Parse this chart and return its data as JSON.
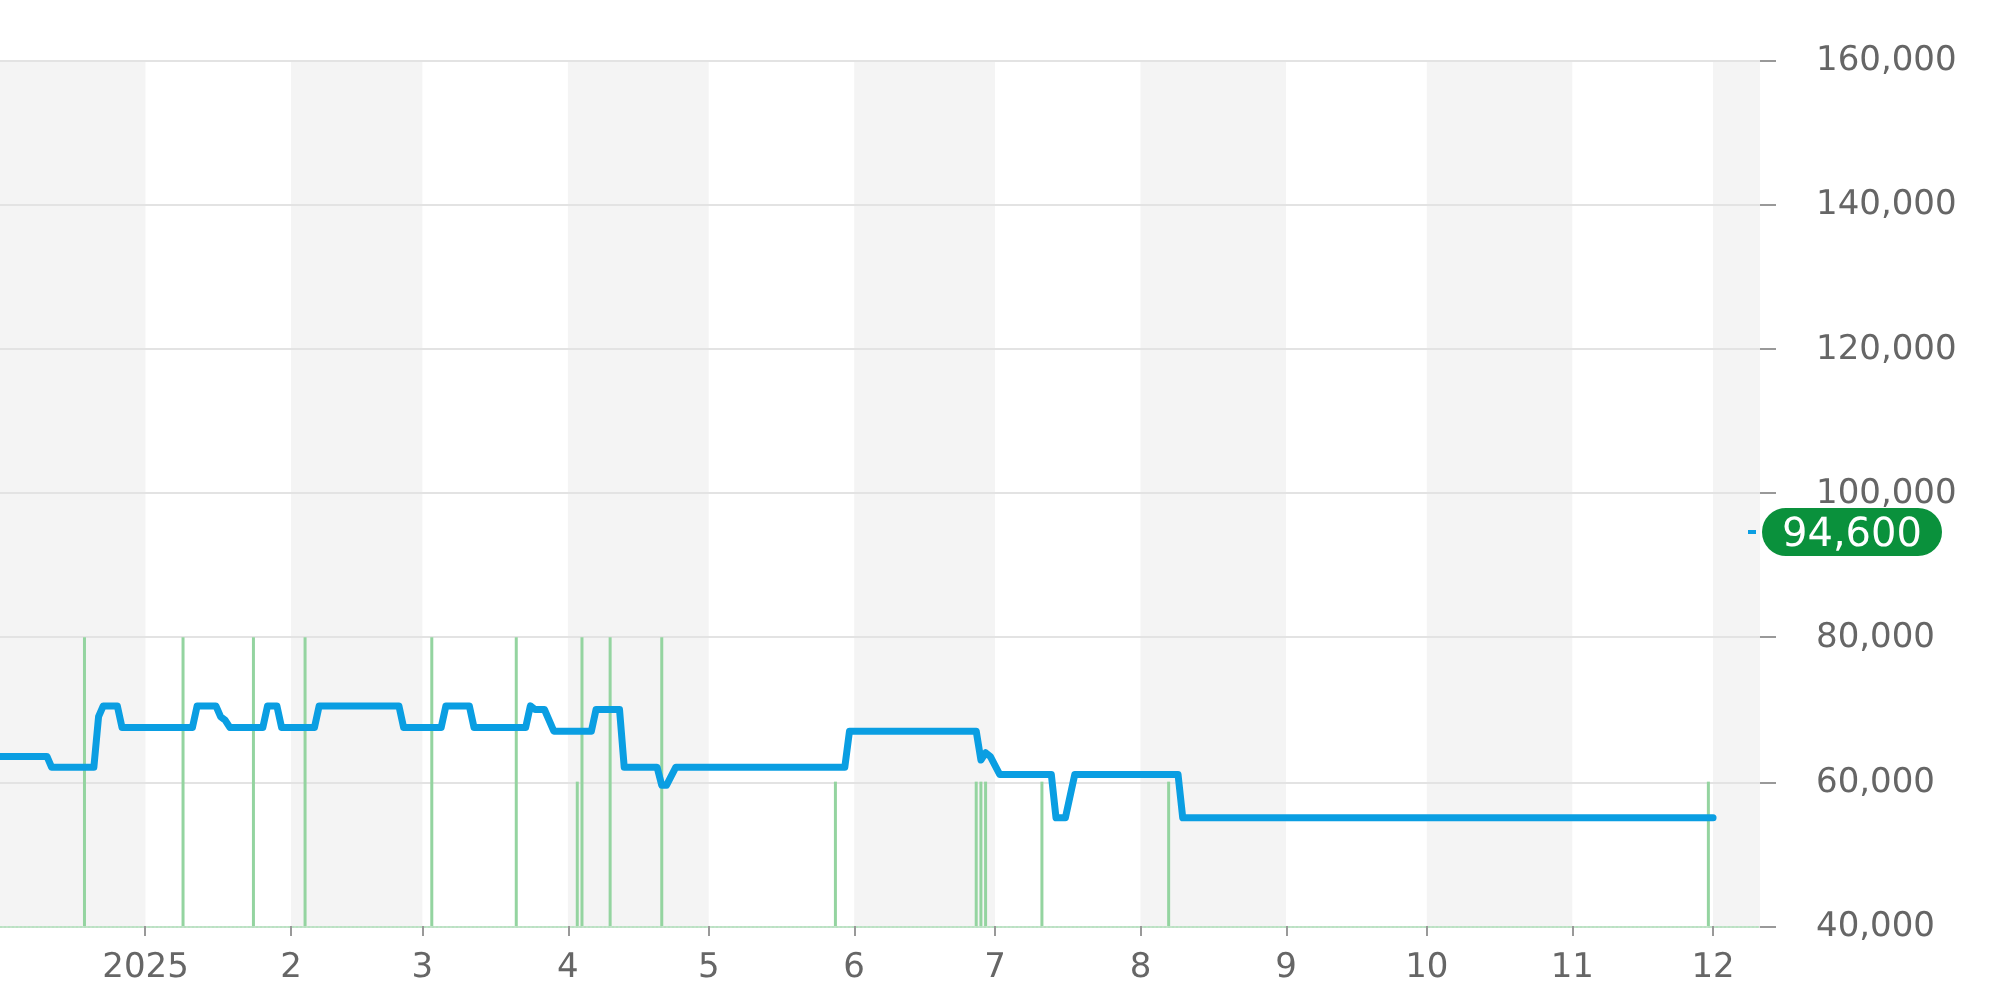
{
  "chart_data": {
    "type": "line",
    "xlim": [
      "2024-12-01",
      "2025-12-11"
    ],
    "xticks": [
      {
        "value": "2025-01-01",
        "label": "2025"
      },
      {
        "value": "2025-02-01",
        "label": "2"
      },
      {
        "value": "2025-03-01",
        "label": "3"
      },
      {
        "value": "2025-04-01",
        "label": "4"
      },
      {
        "value": "2025-05-01",
        "label": "5"
      },
      {
        "value": "2025-06-01",
        "label": "6"
      },
      {
        "value": "2025-07-01",
        "label": "7"
      },
      {
        "value": "2025-08-01",
        "label": "8"
      },
      {
        "value": "2025-09-01",
        "label": "9"
      },
      {
        "value": "2025-10-01",
        "label": "10"
      },
      {
        "value": "2025-11-01",
        "label": "11"
      },
      {
        "value": "2025-12-01",
        "label": "12"
      }
    ],
    "ylim": [
      40000,
      160000
    ],
    "yticks": [
      {
        "value": 40000,
        "label": "40,000"
      },
      {
        "value": 60000,
        "label": "60,000"
      },
      {
        "value": 80000,
        "label": "80,000"
      },
      {
        "value": 100000,
        "label": "100,000"
      },
      {
        "value": 120000,
        "label": "120,000"
      },
      {
        "value": 140000,
        "label": "140,000"
      },
      {
        "value": 160000,
        "label": "160,000"
      }
    ],
    "grid": "y",
    "marker": "none",
    "series": [
      {
        "type": "bar",
        "color": "#94d4a0",
        "x": [
          "2024-12-19",
          "2025-01-09",
          "2025-01-24",
          "2025-02-04",
          "2025-03-03",
          "2025-03-21",
          "2025-04-03",
          "2025-04-04",
          "2025-04-10",
          "2025-04-21",
          "2025-05-28",
          "2025-06-27",
          "2025-06-28",
          "2025-06-29",
          "2025-07-11",
          "2025-08-07",
          "2025-11-30"
        ],
        "values": [
          80000,
          80000,
          80000,
          80000,
          80000,
          80000,
          60000,
          80000,
          80000,
          80000,
          60000,
          60000,
          60000,
          60000,
          60000,
          60000,
          60000
        ]
      },
      {
        "color": "#0a9ee2",
        "x": [
          "2024-12-01",
          "2024-12-11",
          "2024-12-12",
          "2024-12-21",
          "2024-12-22",
          "2024-12-23",
          "2024-12-26",
          "2024-12-27",
          "2025-01-11",
          "2025-01-12",
          "2025-01-16",
          "2025-01-17",
          "2025-01-18",
          "2025-01-19",
          "2025-01-26",
          "2025-01-27",
          "2025-01-29",
          "2025-01-30",
          "2025-02-06",
          "2025-02-07",
          "2025-02-24",
          "2025-02-25",
          "2025-03-05",
          "2025-03-06",
          "2025-03-11",
          "2025-03-12",
          "2025-03-23",
          "2025-03-24",
          "2025-03-25",
          "2025-03-27",
          "2025-03-29",
          "2025-04-06",
          "2025-04-07",
          "2025-04-12",
          "2025-04-13",
          "2025-04-20",
          "2025-04-21",
          "2025-04-22",
          "2025-04-24",
          "2025-05-30",
          "2025-05-31",
          "2025-06-27",
          "2025-06-28",
          "2025-06-29",
          "2025-06-30",
          "2025-07-02",
          "2025-07-13",
          "2025-07-14",
          "2025-07-16",
          "2025-07-18",
          "2025-08-09",
          "2025-08-10",
          "2025-12-01"
        ],
        "values": [
          63500,
          63500,
          62000,
          62000,
          69000,
          70500,
          70500,
          67500,
          67500,
          70500,
          70500,
          69000,
          68500,
          67500,
          67500,
          70500,
          70500,
          67500,
          67500,
          70500,
          70500,
          67500,
          67500,
          70500,
          70500,
          67500,
          67500,
          70500,
          70000,
          70000,
          67000,
          67000,
          70000,
          70000,
          62000,
          62000,
          59500,
          59500,
          62000,
          62000,
          67000,
          67000,
          63000,
          64000,
          63500,
          61000,
          61000,
          55000,
          55000,
          61000,
          61000,
          55000,
          55000
        ]
      }
    ],
    "bands": [
      {
        "axis": "x",
        "from": "2024-12-01",
        "to": "2025-01-01",
        "color": "#f4f4f4"
      },
      {
        "axis": "x",
        "from": "2025-02-01",
        "to": "2025-03-01",
        "color": "#f4f4f4"
      },
      {
        "axis": "x",
        "from": "2025-04-01",
        "to": "2025-05-01",
        "color": "#f4f4f4"
      },
      {
        "axis": "x",
        "from": "2025-06-01",
        "to": "2025-07-01",
        "color": "#f4f4f4"
      },
      {
        "axis": "x",
        "from": "2025-08-01",
        "to": "2025-09-01",
        "color": "#f4f4f4"
      },
      {
        "axis": "x",
        "from": "2025-10-01",
        "to": "2025-11-01",
        "color": "#f4f4f4"
      },
      {
        "axis": "x",
        "from": "2025-12-01",
        "to": "2025-12-11",
        "color": "#f4f4f4"
      }
    ],
    "annotations": [
      {
        "text": "94,600",
        "x": "2025-12-11",
        "y": 94600
      }
    ]
  }
}
